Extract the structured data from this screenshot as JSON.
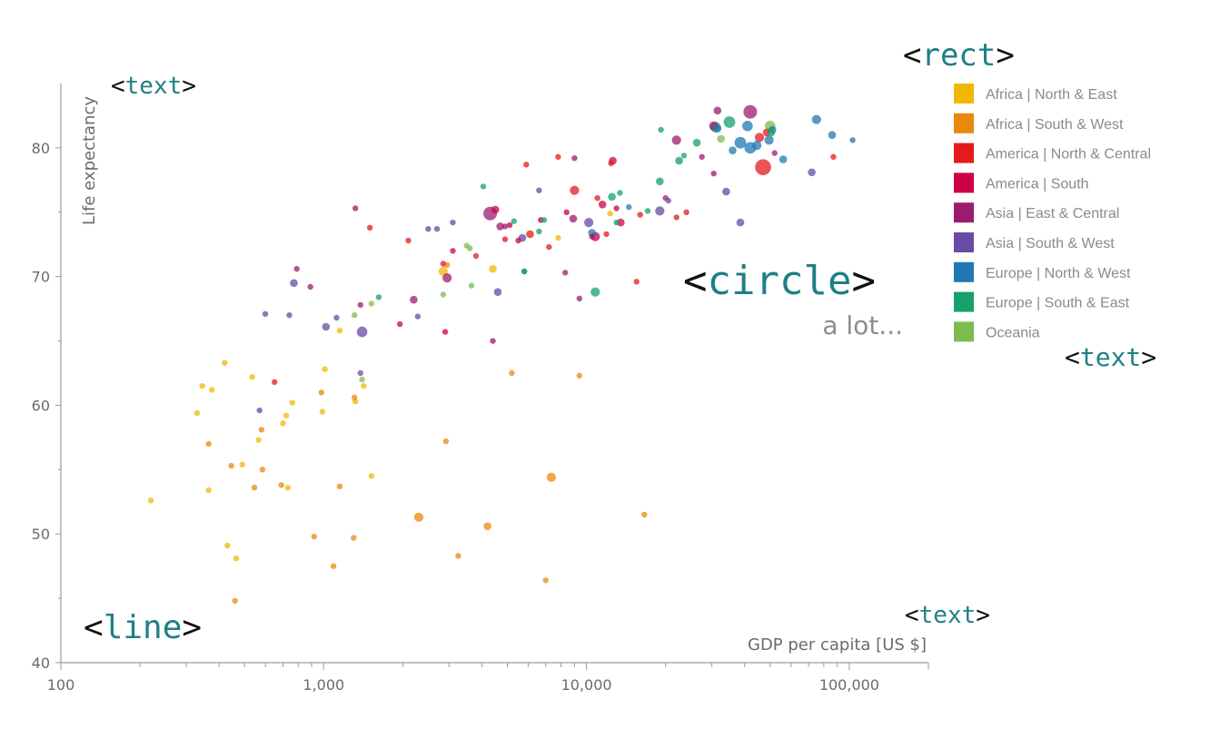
{
  "chart_data": {
    "type": "scatter",
    "xlabel": "GDP per capita [US $]",
    "ylabel": "Life expectancy",
    "x_scale": "log",
    "xlim": [
      100,
      200000
    ],
    "ylim": [
      40,
      85
    ],
    "x_ticks": [
      100,
      1000,
      10000,
      100000
    ],
    "x_tick_labels": [
      "100",
      "1,000",
      "10,000",
      "100,000"
    ],
    "y_ticks": [
      40,
      50,
      60,
      70,
      80
    ],
    "y_tick_labels": [
      "40",
      "50",
      "60",
      "70",
      "80"
    ],
    "legend_placement": "right",
    "series": [
      {
        "name": "Africa | North & East",
        "color": "#f2b705",
        "points": [
          {
            "x": 220,
            "y": 52.6,
            "s": 1
          },
          {
            "x": 330,
            "y": 59.4,
            "s": 1
          },
          {
            "x": 345,
            "y": 61.5,
            "s": 1
          },
          {
            "x": 375,
            "y": 61.2,
            "s": 1
          },
          {
            "x": 365,
            "y": 53.4,
            "s": 1
          },
          {
            "x": 420,
            "y": 63.3,
            "s": 1
          },
          {
            "x": 430,
            "y": 49.1,
            "s": 1
          },
          {
            "x": 465,
            "y": 48.1,
            "s": 1
          },
          {
            "x": 490,
            "y": 55.4,
            "s": 1
          },
          {
            "x": 535,
            "y": 62.2,
            "s": 1
          },
          {
            "x": 565,
            "y": 57.3,
            "s": 1
          },
          {
            "x": 700,
            "y": 58.6,
            "s": 1
          },
          {
            "x": 720,
            "y": 59.2,
            "s": 1
          },
          {
            "x": 730,
            "y": 53.6,
            "s": 1
          },
          {
            "x": 760,
            "y": 60.2,
            "s": 1
          },
          {
            "x": 990,
            "y": 59.5,
            "s": 1
          },
          {
            "x": 1010,
            "y": 62.8,
            "s": 1
          },
          {
            "x": 1320,
            "y": 60.3,
            "s": 1
          },
          {
            "x": 1420,
            "y": 61.5,
            "s": 1
          },
          {
            "x": 1520,
            "y": 54.5,
            "s": 1
          },
          {
            "x": 1150,
            "y": 65.8,
            "s": 1
          },
          {
            "x": 2850,
            "y": 70.4,
            "s": 3
          },
          {
            "x": 4400,
            "y": 70.6,
            "s": 2
          },
          {
            "x": 12300,
            "y": 74.9,
            "s": 1
          },
          {
            "x": 7800,
            "y": 73.0,
            "s": 1
          }
        ]
      },
      {
        "name": "Africa | South & West",
        "color": "#e8890c",
        "points": [
          {
            "x": 365,
            "y": 57.0,
            "s": 1
          },
          {
            "x": 445,
            "y": 55.3,
            "s": 1
          },
          {
            "x": 460,
            "y": 44.8,
            "s": 1
          },
          {
            "x": 545,
            "y": 53.6,
            "s": 1
          },
          {
            "x": 585,
            "y": 55.0,
            "s": 1
          },
          {
            "x": 690,
            "y": 53.8,
            "s": 1
          },
          {
            "x": 580,
            "y": 58.1,
            "s": 1
          },
          {
            "x": 920,
            "y": 49.8,
            "s": 1
          },
          {
            "x": 980,
            "y": 61.0,
            "s": 1
          },
          {
            "x": 1090,
            "y": 47.5,
            "s": 1
          },
          {
            "x": 1150,
            "y": 53.7,
            "s": 1
          },
          {
            "x": 1300,
            "y": 49.7,
            "s": 1
          },
          {
            "x": 1310,
            "y": 60.6,
            "s": 1
          },
          {
            "x": 2300,
            "y": 51.3,
            "s": 3
          },
          {
            "x": 2920,
            "y": 57.2,
            "s": 1
          },
          {
            "x": 3250,
            "y": 48.3,
            "s": 1
          },
          {
            "x": 4200,
            "y": 50.6,
            "s": 2
          },
          {
            "x": 5200,
            "y": 62.5,
            "s": 1
          },
          {
            "x": 7000,
            "y": 46.4,
            "s": 1
          },
          {
            "x": 7350,
            "y": 54.4,
            "s": 3
          },
          {
            "x": 9400,
            "y": 62.3,
            "s": 1
          },
          {
            "x": 16600,
            "y": 51.5,
            "s": 1
          },
          {
            "x": 2950,
            "y": 70.9,
            "s": 1
          }
        ]
      },
      {
        "name": "America | North & Central",
        "color": "#e41a1c",
        "points": [
          {
            "x": 47000,
            "y": 78.5,
            "s": 10
          },
          {
            "x": 45500,
            "y": 80.8,
            "s": 3
          },
          {
            "x": 48500,
            "y": 81.2,
            "s": 2
          },
          {
            "x": 11000,
            "y": 76.1,
            "s": 1
          },
          {
            "x": 9000,
            "y": 76.7,
            "s": 3
          },
          {
            "x": 5900,
            "y": 78.7,
            "s": 1
          },
          {
            "x": 7800,
            "y": 79.3,
            "s": 1
          },
          {
            "x": 2100,
            "y": 72.8,
            "s": 1
          },
          {
            "x": 3800,
            "y": 71.6,
            "s": 1
          },
          {
            "x": 4900,
            "y": 72.9,
            "s": 1
          },
          {
            "x": 6100,
            "y": 73.3,
            "s": 2
          },
          {
            "x": 7200,
            "y": 72.3,
            "s": 1
          },
          {
            "x": 2850,
            "y": 71.0,
            "s": 1
          },
          {
            "x": 11900,
            "y": 73.3,
            "s": 1
          },
          {
            "x": 12400,
            "y": 78.8,
            "s": 1
          },
          {
            "x": 22000,
            "y": 74.6,
            "s": 1
          },
          {
            "x": 24000,
            "y": 75.0,
            "s": 1
          },
          {
            "x": 16000,
            "y": 74.8,
            "s": 1
          },
          {
            "x": 15500,
            "y": 69.6,
            "s": 1
          },
          {
            "x": 1500,
            "y": 73.8,
            "s": 1
          },
          {
            "x": 650,
            "y": 61.8,
            "s": 1
          },
          {
            "x": 87000,
            "y": 79.3,
            "s": 1
          }
        ]
      },
      {
        "name": "America | South",
        "color": "#cc0044",
        "points": [
          {
            "x": 4500,
            "y": 75.2,
            "s": 2
          },
          {
            "x": 5500,
            "y": 72.8,
            "s": 1
          },
          {
            "x": 6700,
            "y": 74.4,
            "s": 1
          },
          {
            "x": 8400,
            "y": 75.0,
            "s": 1
          },
          {
            "x": 10800,
            "y": 73.1,
            "s": 3
          },
          {
            "x": 11500,
            "y": 75.6,
            "s": 2
          },
          {
            "x": 13500,
            "y": 74.2,
            "s": 2
          },
          {
            "x": 13000,
            "y": 75.3,
            "s": 1
          },
          {
            "x": 3100,
            "y": 72.0,
            "s": 1
          },
          {
            "x": 2900,
            "y": 65.7,
            "s": 1
          },
          {
            "x": 1950,
            "y": 66.3,
            "s": 1
          },
          {
            "x": 12600,
            "y": 79.0,
            "s": 2
          },
          {
            "x": 5100,
            "y": 74.0,
            "s": 1
          }
        ]
      },
      {
        "name": "Asia | East & Central",
        "color": "#9c1b6f",
        "points": [
          {
            "x": 4300,
            "y": 74.9,
            "s": 7
          },
          {
            "x": 42000,
            "y": 82.8,
            "s": 7
          },
          {
            "x": 22000,
            "y": 80.6,
            "s": 3
          },
          {
            "x": 30500,
            "y": 81.7,
            "s": 3
          },
          {
            "x": 1320,
            "y": 75.3,
            "s": 1
          },
          {
            "x": 9400,
            "y": 68.3,
            "s": 1
          },
          {
            "x": 2200,
            "y": 68.2,
            "s": 2
          },
          {
            "x": 1380,
            "y": 67.8,
            "s": 1
          },
          {
            "x": 4900,
            "y": 73.9,
            "s": 1
          },
          {
            "x": 10500,
            "y": 73.1,
            "s": 1
          },
          {
            "x": 8900,
            "y": 74.5,
            "s": 2
          },
          {
            "x": 27500,
            "y": 79.3,
            "s": 1
          },
          {
            "x": 31500,
            "y": 82.9,
            "s": 2
          },
          {
            "x": 20000,
            "y": 76.1,
            "s": 1
          },
          {
            "x": 9000,
            "y": 79.2,
            "s": 1
          },
          {
            "x": 2950,
            "y": 69.9,
            "s": 3
          },
          {
            "x": 4700,
            "y": 73.9,
            "s": 2
          },
          {
            "x": 790,
            "y": 70.6,
            "s": 1
          },
          {
            "x": 890,
            "y": 69.2,
            "s": 1
          },
          {
            "x": 4400,
            "y": 65.0,
            "s": 1
          },
          {
            "x": 8300,
            "y": 70.3,
            "s": 1
          },
          {
            "x": 30500,
            "y": 78.0,
            "s": 1
          },
          {
            "x": 52000,
            "y": 79.6,
            "s": 1
          }
        ]
      },
      {
        "name": "Asia | South & West",
        "color": "#6a4aa5",
        "points": [
          {
            "x": 1400,
            "y": 65.7,
            "s": 4
          },
          {
            "x": 1020,
            "y": 66.1,
            "s": 2
          },
          {
            "x": 770,
            "y": 69.5,
            "s": 2
          },
          {
            "x": 600,
            "y": 67.1,
            "s": 1
          },
          {
            "x": 2500,
            "y": 73.7,
            "s": 1
          },
          {
            "x": 2700,
            "y": 73.7,
            "s": 1
          },
          {
            "x": 3100,
            "y": 74.2,
            "s": 1
          },
          {
            "x": 4600,
            "y": 68.8,
            "s": 2
          },
          {
            "x": 5700,
            "y": 73.0,
            "s": 2
          },
          {
            "x": 10200,
            "y": 74.2,
            "s": 3
          },
          {
            "x": 19000,
            "y": 75.1,
            "s": 3
          },
          {
            "x": 20500,
            "y": 75.9,
            "s": 1
          },
          {
            "x": 34000,
            "y": 76.6,
            "s": 2
          },
          {
            "x": 38500,
            "y": 74.2,
            "s": 2
          },
          {
            "x": 72000,
            "y": 78.1,
            "s": 2
          },
          {
            "x": 6600,
            "y": 76.7,
            "s": 1
          },
          {
            "x": 1380,
            "y": 62.5,
            "s": 1
          },
          {
            "x": 570,
            "y": 59.6,
            "s": 1
          },
          {
            "x": 1120,
            "y": 66.8,
            "s": 1
          },
          {
            "x": 740,
            "y": 67.0,
            "s": 1
          },
          {
            "x": 2280,
            "y": 66.9,
            "s": 1
          }
        ]
      },
      {
        "name": "Europe | North & West",
        "color": "#1f78b4",
        "points": [
          {
            "x": 38500,
            "y": 80.4,
            "s": 5
          },
          {
            "x": 41000,
            "y": 81.7,
            "s": 4
          },
          {
            "x": 42000,
            "y": 80.0,
            "s": 5
          },
          {
            "x": 44500,
            "y": 80.2,
            "s": 3
          },
          {
            "x": 49500,
            "y": 80.6,
            "s": 3
          },
          {
            "x": 36000,
            "y": 79.8,
            "s": 2
          },
          {
            "x": 31500,
            "y": 81.5,
            "s": 2
          },
          {
            "x": 51000,
            "y": 81.4,
            "s": 2
          },
          {
            "x": 56000,
            "y": 79.1,
            "s": 2
          },
          {
            "x": 75000,
            "y": 82.2,
            "s": 3
          },
          {
            "x": 86000,
            "y": 81.0,
            "s": 2
          },
          {
            "x": 103000,
            "y": 80.6,
            "s": 1
          },
          {
            "x": 5800,
            "y": 70.4,
            "s": 1
          },
          {
            "x": 14500,
            "y": 75.4,
            "s": 1
          },
          {
            "x": 10500,
            "y": 73.4,
            "s": 2
          }
        ]
      },
      {
        "name": "Europe | South & East",
        "color": "#16a06a",
        "points": [
          {
            "x": 10800,
            "y": 68.8,
            "s": 3
          },
          {
            "x": 12500,
            "y": 76.2,
            "s": 2
          },
          {
            "x": 13400,
            "y": 76.5,
            "s": 1
          },
          {
            "x": 13000,
            "y": 74.2,
            "s": 1
          },
          {
            "x": 17100,
            "y": 75.1,
            "s": 1
          },
          {
            "x": 19000,
            "y": 77.4,
            "s": 2
          },
          {
            "x": 22500,
            "y": 79.0,
            "s": 2
          },
          {
            "x": 26300,
            "y": 80.4,
            "s": 2
          },
          {
            "x": 35000,
            "y": 82.0,
            "s": 5
          },
          {
            "x": 31000,
            "y": 81.6,
            "s": 4
          },
          {
            "x": 19200,
            "y": 81.4,
            "s": 1
          },
          {
            "x": 23500,
            "y": 79.4,
            "s": 1
          },
          {
            "x": 5800,
            "y": 70.4,
            "s": 1
          },
          {
            "x": 4050,
            "y": 77.0,
            "s": 1
          },
          {
            "x": 5300,
            "y": 74.3,
            "s": 1
          },
          {
            "x": 6600,
            "y": 73.5,
            "s": 1
          },
          {
            "x": 6900,
            "y": 74.4,
            "s": 1
          },
          {
            "x": 1620,
            "y": 68.4,
            "s": 1
          },
          {
            "x": 50500,
            "y": 81.2,
            "s": 2
          }
        ]
      },
      {
        "name": "Oceania",
        "color": "#7dbb4e",
        "points": [
          {
            "x": 50000,
            "y": 81.7,
            "s": 4
          },
          {
            "x": 32500,
            "y": 80.7,
            "s": 2
          },
          {
            "x": 2850,
            "y": 68.6,
            "s": 1
          },
          {
            "x": 3500,
            "y": 72.4,
            "s": 1
          },
          {
            "x": 3600,
            "y": 72.2,
            "s": 1
          },
          {
            "x": 3650,
            "y": 69.3,
            "s": 1
          },
          {
            "x": 1310,
            "y": 67.0,
            "s": 1
          },
          {
            "x": 1520,
            "y": 67.9,
            "s": 1
          },
          {
            "x": 1400,
            "y": 62.0,
            "s": 1
          }
        ]
      }
    ]
  },
  "annotations": {
    "circle_tag": {
      "open": "<",
      "name": "circle",
      "close": ">"
    },
    "circle_note": "a lot...",
    "rect_tag": {
      "open": "<",
      "name": "rect",
      "close": ">"
    },
    "text_tag_yaxis": {
      "open": "<",
      "name": "text",
      "close": ">"
    },
    "text_tag_legend": {
      "open": "<",
      "name": "text",
      "close": ">"
    },
    "text_tag_xaxis": {
      "open": "<",
      "name": "text",
      "close": ">"
    },
    "line_tag": {
      "open": "<",
      "name": "line",
      "close": ">"
    }
  }
}
